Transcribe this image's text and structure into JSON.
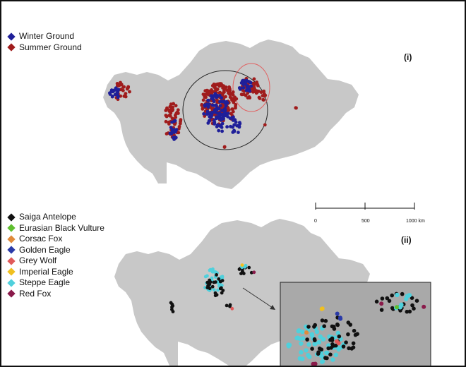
{
  "panel_i": {
    "label": "(i)",
    "legend": [
      {
        "label": "Winter Ground",
        "color": "#1f1f99"
      },
      {
        "label": "Summer Ground",
        "color": "#a01c1c"
      }
    ]
  },
  "panel_ii": {
    "label": "(ii)",
    "legend": [
      {
        "label": "Saiga Antelope",
        "color": "#111111"
      },
      {
        "label": "Eurasian Black Vulture",
        "color": "#5fbf2f"
      },
      {
        "label": "Corsac Fox",
        "color": "#e08a3a"
      },
      {
        "label": "Golden Eagle",
        "color": "#2a3aa8"
      },
      {
        "label": "Grey Wolf",
        "color": "#e05a5a"
      },
      {
        "label": "Imperial Eagle",
        "color": "#f0c020"
      },
      {
        "label": "Steppe Eagle",
        "color": "#4fd0dc"
      },
      {
        "label": "Red Fox",
        "color": "#8a1a4a"
      }
    ]
  },
  "scale_bar": {
    "ticks": [
      "0",
      "500",
      "1000 km"
    ]
  },
  "colors": {
    "land": "#c8c8c8",
    "inset_bg": "#a9a9a9",
    "circle_black": "#222222",
    "circle_red": "#e06060"
  }
}
